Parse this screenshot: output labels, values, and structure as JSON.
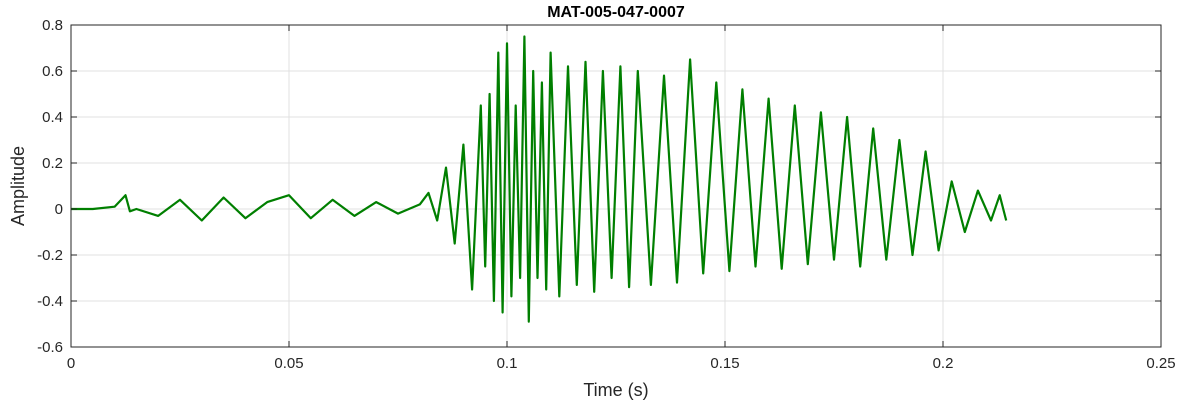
{
  "chart_data": {
    "type": "line",
    "title": "MAT-005-047-0007",
    "xlabel": "Time (s)",
    "ylabel": "Amplitude",
    "xlim": [
      0,
      0.25
    ],
    "ylim": [
      -0.6,
      0.8
    ],
    "xticks": [
      0,
      0.05,
      0.1,
      0.15,
      0.2,
      0.25
    ],
    "xtick_labels": [
      "0",
      "0.05",
      "0.1",
      "0.15",
      "0.2",
      "0.25"
    ],
    "yticks": [
      -0.6,
      -0.4,
      -0.2,
      0,
      0.2,
      0.4,
      0.6,
      0.8
    ],
    "ytick_labels": [
      "-0.6",
      "-0.4",
      "-0.2",
      "0",
      "0.2",
      "0.4",
      "0.6",
      "0.8"
    ],
    "grid": true,
    "series": [
      {
        "color": "#007f00",
        "x": [
          0,
          0.005,
          0.01,
          0.0125,
          0.0135,
          0.015,
          0.02,
          0.025,
          0.03,
          0.035,
          0.04,
          0.045,
          0.05,
          0.055,
          0.06,
          0.065,
          0.07,
          0.075,
          0.08,
          0.082,
          0.084,
          0.086,
          0.088,
          0.09,
          0.092,
          0.094,
          0.095,
          0.096,
          0.097,
          0.098,
          0.099,
          0.1,
          0.101,
          0.102,
          0.103,
          0.104,
          0.105,
          0.106,
          0.107,
          0.108,
          0.109,
          0.11,
          0.112,
          0.114,
          0.116,
          0.118,
          0.12,
          0.122,
          0.124,
          0.126,
          0.128,
          0.13,
          0.133,
          0.136,
          0.139,
          0.142,
          0.145,
          0.148,
          0.151,
          0.154,
          0.157,
          0.16,
          0.163,
          0.166,
          0.169,
          0.172,
          0.175,
          0.178,
          0.181,
          0.184,
          0.187,
          0.19,
          0.193,
          0.196,
          0.199,
          0.202,
          0.205,
          0.208,
          0.211,
          0.213,
          0.2145
        ],
        "y": [
          0.0,
          0.0,
          0.01,
          0.06,
          -0.01,
          0.0,
          -0.03,
          0.04,
          -0.05,
          0.05,
          -0.04,
          0.03,
          0.06,
          -0.04,
          0.04,
          -0.03,
          0.03,
          -0.02,
          0.02,
          0.07,
          -0.05,
          0.18,
          -0.15,
          0.28,
          -0.35,
          0.45,
          -0.25,
          0.5,
          -0.4,
          0.68,
          -0.45,
          0.72,
          -0.38,
          0.45,
          -0.3,
          0.75,
          -0.49,
          0.6,
          -0.3,
          0.55,
          -0.35,
          0.68,
          -0.38,
          0.62,
          -0.33,
          0.64,
          -0.36,
          0.6,
          -0.3,
          0.62,
          -0.34,
          0.6,
          -0.33,
          0.58,
          -0.32,
          0.65,
          -0.28,
          0.55,
          -0.27,
          0.52,
          -0.25,
          0.48,
          -0.26,
          0.45,
          -0.24,
          0.42,
          -0.22,
          0.4,
          -0.25,
          0.35,
          -0.22,
          0.3,
          -0.2,
          0.25,
          -0.18,
          0.12,
          -0.1,
          0.08,
          -0.05,
          0.06,
          -0.05
        ]
      }
    ]
  }
}
